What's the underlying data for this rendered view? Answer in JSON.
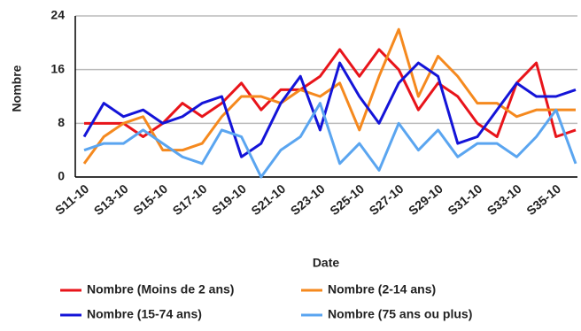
{
  "chart_data": {
    "type": "line",
    "y_label": "Nombre",
    "x_label": "Date",
    "categories": [
      "S11-10",
      null,
      "S13-10",
      null,
      "S15-10",
      null,
      "S17-10",
      null,
      "S19-10",
      null,
      "S21-10",
      null,
      "S23-10",
      null,
      "S25-10",
      null,
      "S27-10",
      null,
      "S29-10",
      null,
      "S31-10",
      null,
      "S33-10",
      null,
      "S35-10",
      null
    ],
    "series": [
      {
        "name": "Nombre (Moins de 2 ans)",
        "color": "#e8141a",
        "values": [
          8,
          8,
          8,
          6,
          8,
          11,
          9,
          11,
          14,
          10,
          13,
          13,
          15,
          19,
          15,
          19,
          16,
          10,
          14,
          12,
          8,
          6,
          14,
          17,
          6,
          7
        ]
      },
      {
        "name": "Nombre (2-14 ans)",
        "color": "#f5891e",
        "values": [
          2,
          6,
          8,
          9,
          4,
          4,
          5,
          9,
          12,
          12,
          11,
          13,
          12,
          14,
          7,
          15,
          22,
          12,
          18,
          15,
          11,
          11,
          9,
          10,
          10,
          10
        ]
      },
      {
        "name": "Nombre (15-74 ans)",
        "color": "#1414d8",
        "values": [
          6,
          11,
          9,
          10,
          8,
          9,
          11,
          12,
          3,
          5,
          11,
          15,
          7,
          17,
          12,
          8,
          14,
          17,
          15,
          5,
          6,
          10,
          14,
          12,
          12,
          13
        ]
      },
      {
        "name": "Nombre (75 ans ou plus)",
        "color": "#5aa5f0",
        "values": [
          4,
          5,
          5,
          7,
          5,
          3,
          2,
          7,
          6,
          0,
          4,
          6,
          11,
          2,
          5,
          1,
          8,
          4,
          7,
          3,
          5,
          5,
          3,
          6,
          10,
          2
        ]
      }
    ],
    "ylim": [
      0,
      24
    ],
    "yticks": [
      0,
      8,
      16,
      24
    ],
    "grid": true
  }
}
